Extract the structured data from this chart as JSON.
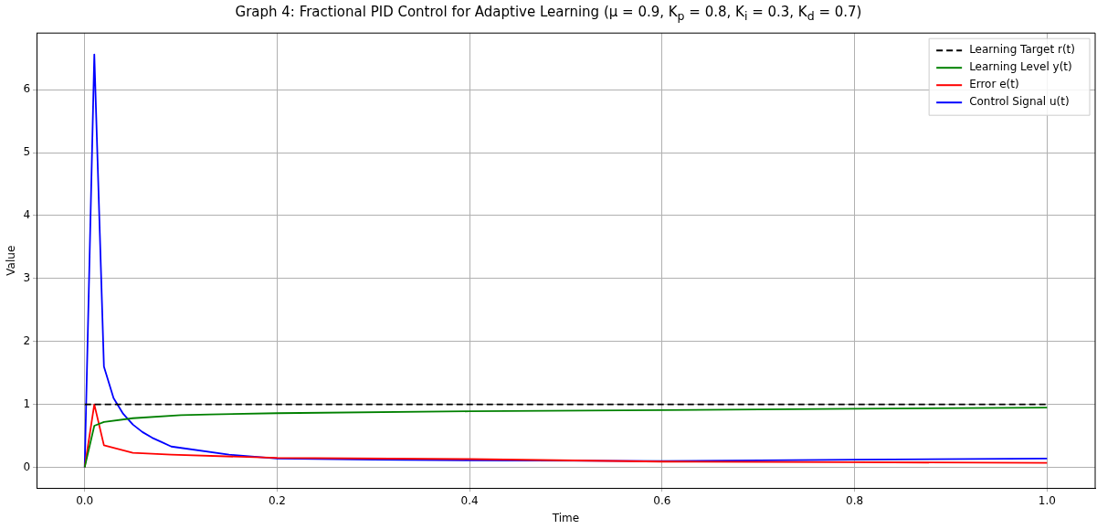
{
  "chart_data": {
    "type": "line",
    "title": "Graph 4: Fractional PID Control for Adaptive Learning (μ = 0.9, K$_{p}$ = 0.8, K$_{i}$ = 0.3, K$_{d}$ = 0.7)",
    "xlabel": "Time",
    "ylabel": "Value",
    "series": [
      {
        "name": "Learning Target r(t)",
        "color": "#000000",
        "line_style": "dashed",
        "x": [
          0,
          1
        ],
        "values": [
          1,
          1
        ]
      },
      {
        "name": "Learning Level y(t)",
        "color": "#008000",
        "x": [
          0,
          0.01,
          0.02,
          0.05,
          0.1,
          0.13,
          0.2,
          0.4,
          0.6,
          0.8,
          1.0
        ],
        "values": [
          0,
          0.66,
          0.72,
          0.78,
          0.83,
          0.84,
          0.86,
          0.89,
          0.91,
          0.93,
          0.95
        ]
      },
      {
        "name": "Error e(t)",
        "color": "#ff0000",
        "x": [
          0,
          0.01,
          0.02,
          0.05,
          0.09,
          0.2,
          0.4,
          0.6,
          0.8,
          1.0
        ],
        "values": [
          0,
          1.0,
          0.35,
          0.23,
          0.2,
          0.15,
          0.13,
          0.09,
          0.08,
          0.07
        ]
      },
      {
        "name": "Control Signal u(t)",
        "color": "#0000ff",
        "x": [
          0,
          0.01,
          0.02,
          0.03,
          0.04,
          0.05,
          0.06,
          0.07,
          0.08,
          0.09,
          0.15,
          0.2,
          0.3,
          0.4,
          0.6,
          0.8,
          1.0
        ],
        "values": [
          0,
          6.56,
          1.6,
          1.1,
          0.85,
          0.68,
          0.56,
          0.47,
          0.4,
          0.33,
          0.2,
          0.14,
          0.12,
          0.11,
          0.1,
          0.12,
          0.14
        ]
      }
    ],
    "xlim": [
      -0.05,
      1.05
    ],
    "ylim": [
      -0.33,
      6.9
    ],
    "xticks": [
      {
        "value": 0,
        "label": "0.0"
      },
      0.2,
      0.4,
      0.6,
      0.8,
      {
        "value": 1,
        "label": "1.0"
      }
    ],
    "yticks": [
      0,
      1,
      2,
      3,
      4,
      5,
      6
    ],
    "grid": true,
    "legend": "top right",
    "marker": "none",
    "line_style": "solid"
  }
}
